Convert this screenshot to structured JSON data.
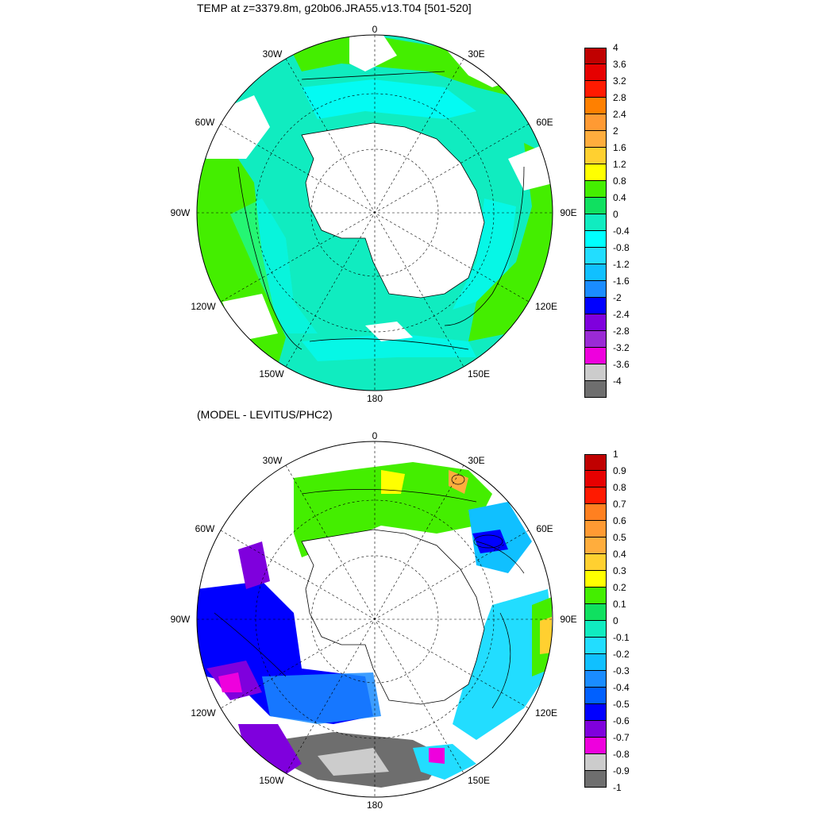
{
  "top_panel": {
    "title": "TEMP at z=3379.8m, g20b06.JRA55.v13.T04 [501-520]",
    "lon_labels": {
      "n": "0",
      "ne30": "30E",
      "ne60": "60E",
      "e": "90E",
      "se120": "120E",
      "se150": "150E",
      "s": "180",
      "sw150": "150W",
      "sw120": "120W",
      "w": "90W",
      "nw60": "60W",
      "nw30": "30W"
    },
    "colorbar": {
      "labels": [
        "4",
        "3.6",
        "3.2",
        "2.8",
        "2.4",
        "2",
        "1.6",
        "1.2",
        "0.8",
        "0.4",
        "0",
        "-0.4",
        "-0.8",
        "-1.2",
        "-1.6",
        "-2",
        "-2.4",
        "-2.8",
        "-3.2",
        "-3.6",
        "-4"
      ],
      "colors": [
        "#c00000",
        "#e60000",
        "#ff1a00",
        "#ff8000",
        "#ff9a33",
        "#ffad3d",
        "#ffd030",
        "#ffff00",
        "#44ee00",
        "#10e060",
        "#10ecc0",
        "#00ffff",
        "#22ddff",
        "#10c0ff",
        "#1a8cff",
        "#0000ff",
        "#7f00dd",
        "#9a2ad5",
        "#ee00dd",
        "#cccccc",
        "#6e6e6e"
      ]
    }
  },
  "bottom_panel": {
    "title": "(MODEL - LEVITUS/PHC2)",
    "lon_labels": {
      "n": "0",
      "ne30": "30E",
      "ne60": "60E",
      "e": "90E",
      "se120": "120E",
      "se150": "150E",
      "s": "180",
      "sw150": "150W",
      "sw120": "120W",
      "w": "90W",
      "nw60": "60W",
      "nw30": "30W"
    },
    "colorbar": {
      "labels": [
        "1",
        "0.9",
        "0.8",
        "0.7",
        "0.6",
        "0.5",
        "0.4",
        "0.3",
        "0.2",
        "0.1",
        "0",
        "-0.1",
        "-0.2",
        "-0.3",
        "-0.4",
        "-0.5",
        "-0.6",
        "-0.7",
        "-0.8",
        "-0.9",
        "-1"
      ],
      "colors": [
        "#c00000",
        "#e60000",
        "#ff1a00",
        "#ff8020",
        "#ff9a33",
        "#ffad3d",
        "#ffd030",
        "#ffff00",
        "#44ee00",
        "#10e060",
        "#10ecc0",
        "#22ddff",
        "#10c0ff",
        "#1a8cff",
        "#0060ff",
        "#0000ff",
        "#7f00dd",
        "#ee00dd",
        "#cccccc",
        "#6e6e6e"
      ]
    }
  }
}
